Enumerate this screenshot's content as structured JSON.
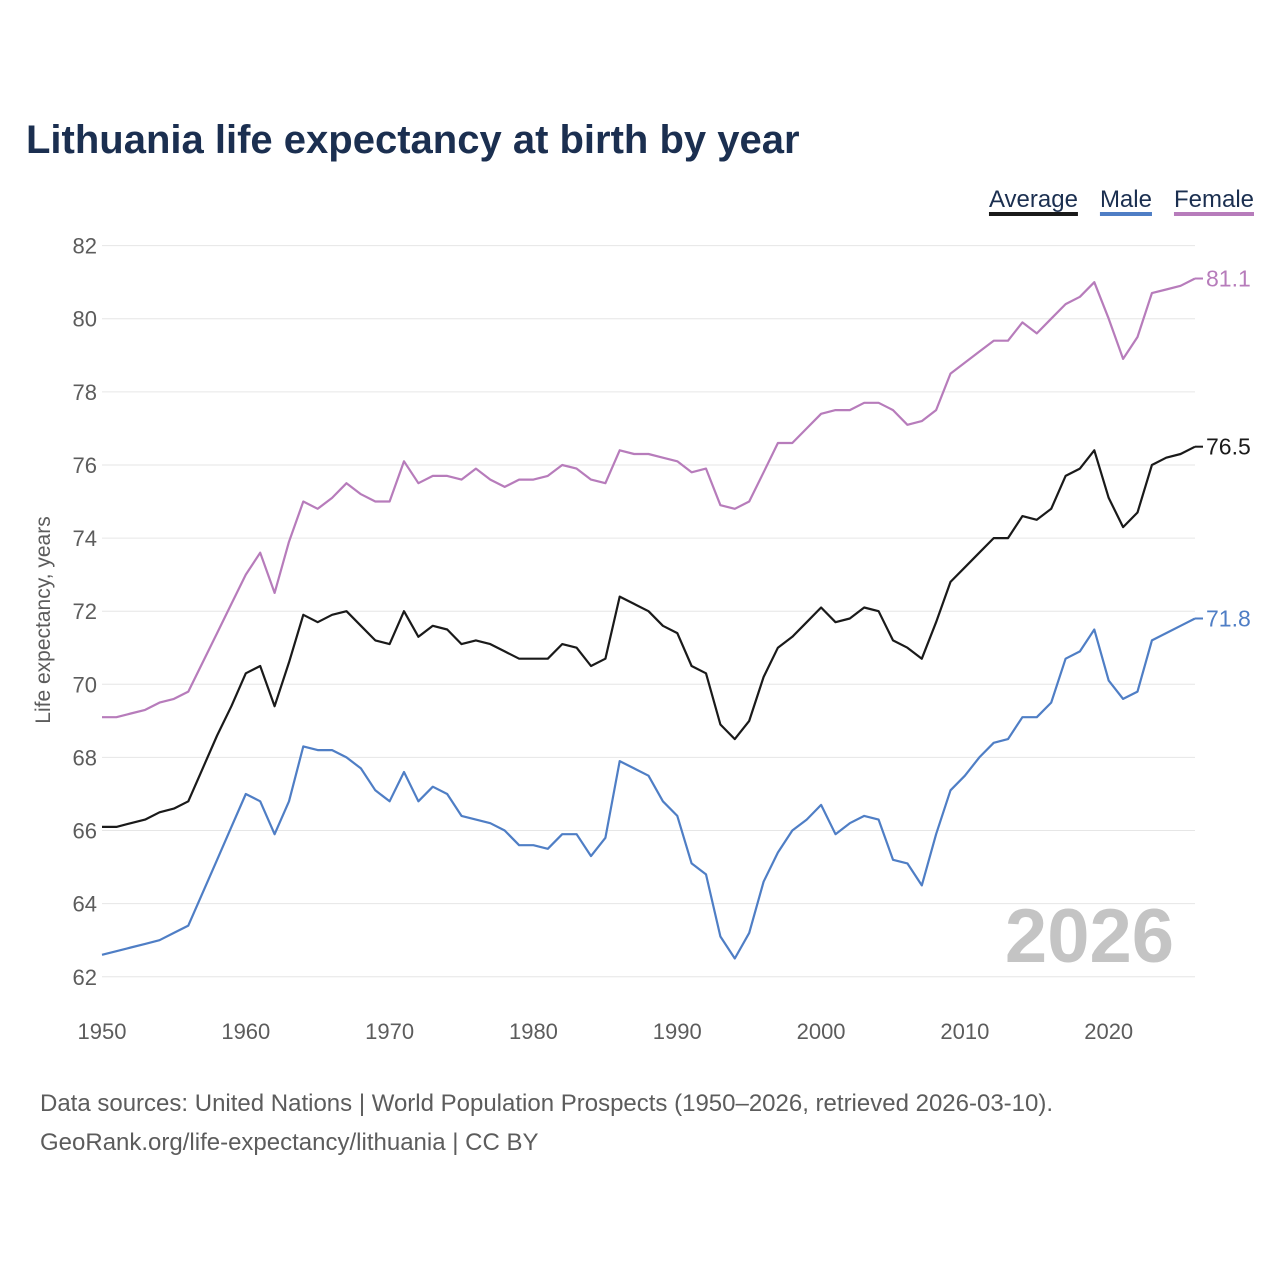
{
  "colors": {
    "average": "#1a1a1a",
    "male": "#4f7ec5",
    "female": "#b77cbb",
    "title": "#1b2f50",
    "text_muted": "#5c5c5c",
    "watermark": "#c4c4c4"
  },
  "footer": {
    "source_line": "Data sources: United Nations | World Population Prospects (1950–2026, retrieved 2026-03-10).",
    "credit_line": "GeoRank.org/life-expectancy/lithuania | CC BY"
  },
  "chart_data": {
    "type": "line",
    "title": "Lithuania life expectancy at birth by year",
    "xlabel": "",
    "ylabel": "Life expectancy, years",
    "watermark_year": "2026",
    "legend_position": "top-right",
    "grid": true,
    "xlim": [
      1950,
      2026
    ],
    "ylim": [
      61.2,
      82.4
    ],
    "x_ticks": [
      1950,
      1960,
      1970,
      1980,
      1990,
      2000,
      2010,
      2020
    ],
    "y_ticks": [
      62,
      64,
      66,
      68,
      70,
      72,
      74,
      76,
      78,
      80,
      82
    ],
    "x": [
      1950,
      1951,
      1952,
      1953,
      1954,
      1955,
      1956,
      1957,
      1958,
      1959,
      1960,
      1961,
      1962,
      1963,
      1964,
      1965,
      1966,
      1967,
      1968,
      1969,
      1970,
      1971,
      1972,
      1973,
      1974,
      1975,
      1976,
      1977,
      1978,
      1979,
      1980,
      1981,
      1982,
      1983,
      1984,
      1985,
      1986,
      1987,
      1988,
      1989,
      1990,
      1991,
      1992,
      1993,
      1994,
      1995,
      1996,
      1997,
      1998,
      1999,
      2000,
      2001,
      2002,
      2003,
      2004,
      2005,
      2006,
      2007,
      2008,
      2009,
      2010,
      2011,
      2012,
      2013,
      2014,
      2015,
      2016,
      2017,
      2018,
      2019,
      2020,
      2021,
      2022,
      2023,
      2024,
      2025,
      2026
    ],
    "series": [
      {
        "key": "average",
        "name": "Average",
        "end_label": "76.5",
        "values": [
          66.1,
          66.1,
          66.2,
          66.3,
          66.5,
          66.6,
          66.8,
          67.7,
          68.6,
          69.4,
          70.3,
          70.5,
          69.4,
          70.6,
          71.9,
          71.7,
          71.9,
          72.0,
          71.6,
          71.2,
          71.1,
          72.0,
          71.3,
          71.6,
          71.5,
          71.1,
          71.2,
          71.1,
          70.9,
          70.7,
          70.7,
          70.7,
          71.1,
          71.0,
          70.5,
          70.7,
          72.4,
          72.2,
          72.0,
          71.6,
          71.4,
          70.5,
          70.3,
          68.9,
          68.5,
          69.0,
          70.2,
          71.0,
          71.3,
          71.7,
          72.1,
          71.7,
          71.8,
          72.1,
          72.0,
          71.2,
          71.0,
          70.7,
          71.7,
          72.8,
          73.2,
          73.6,
          74.0,
          74.0,
          74.6,
          74.5,
          74.8,
          75.7,
          75.9,
          76.4,
          75.1,
          74.3,
          74.7,
          76.0,
          76.2,
          76.3,
          76.5
        ]
      },
      {
        "key": "male",
        "name": "Male",
        "end_label": "71.8",
        "values": [
          62.6,
          62.7,
          62.8,
          62.9,
          63.0,
          63.2,
          63.4,
          64.3,
          65.2,
          66.1,
          67.0,
          66.8,
          65.9,
          66.8,
          68.3,
          68.2,
          68.2,
          68.0,
          67.7,
          67.1,
          66.8,
          67.6,
          66.8,
          67.2,
          67.0,
          66.4,
          66.3,
          66.2,
          66.0,
          65.6,
          65.6,
          65.5,
          65.9,
          65.9,
          65.3,
          65.8,
          67.9,
          67.7,
          67.5,
          66.8,
          66.4,
          65.1,
          64.8,
          63.1,
          62.5,
          63.2,
          64.6,
          65.4,
          66.0,
          66.3,
          66.7,
          65.9,
          66.2,
          66.4,
          66.3,
          65.2,
          65.1,
          64.5,
          65.9,
          67.1,
          67.5,
          68.0,
          68.4,
          68.5,
          69.1,
          69.1,
          69.5,
          70.7,
          70.9,
          71.5,
          70.1,
          69.6,
          69.8,
          71.2,
          71.4,
          71.6,
          71.8
        ]
      },
      {
        "key": "female",
        "name": "Female",
        "end_label": "81.1",
        "values": [
          69.1,
          69.1,
          69.2,
          69.3,
          69.5,
          69.6,
          69.8,
          70.6,
          71.4,
          72.2,
          73.0,
          73.6,
          72.5,
          73.9,
          75.0,
          74.8,
          75.1,
          75.5,
          75.2,
          75.0,
          75.0,
          76.1,
          75.5,
          75.7,
          75.7,
          75.6,
          75.9,
          75.6,
          75.4,
          75.6,
          75.6,
          75.7,
          76.0,
          75.9,
          75.6,
          75.5,
          76.4,
          76.3,
          76.3,
          76.2,
          76.1,
          75.8,
          75.9,
          74.9,
          74.8,
          75.0,
          75.8,
          76.6,
          76.6,
          77.0,
          77.4,
          77.5,
          77.5,
          77.7,
          77.7,
          77.5,
          77.1,
          77.2,
          77.5,
          78.5,
          78.8,
          79.1,
          79.4,
          79.4,
          79.9,
          79.6,
          80.0,
          80.4,
          80.6,
          81.0,
          80.0,
          78.9,
          79.5,
          80.7,
          80.8,
          80.9,
          81.1
        ]
      }
    ]
  }
}
